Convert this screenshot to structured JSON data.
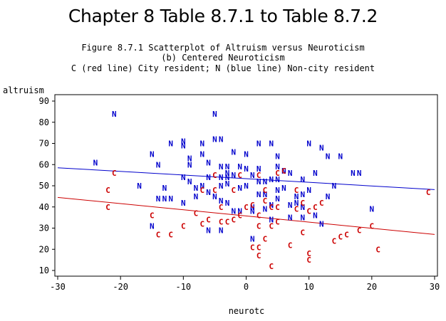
{
  "page": {
    "title": "Chapter 8 Table 8.7.1 to Table 8.7.2",
    "subtitle_lines": [
      "Figure 8.7.1 Scatterplot of Altruism versus Neuroticism",
      "(b) Centered Neuroticism",
      "C (red line) City resident; N (blue line) Non-city resident"
    ]
  },
  "chart_data": {
    "type": "scatter",
    "xlabel": "neurotc",
    "ylabel": "altruism",
    "xlim": [
      -30,
      30
    ],
    "ylim": [
      8,
      95
    ],
    "x_ticks": [
      -30,
      -20,
      -10,
      0,
      10,
      20,
      30
    ],
    "y_ticks": [
      10,
      20,
      30,
      40,
      50,
      60,
      70,
      80,
      90
    ],
    "grid": false,
    "legend": "none",
    "series": [
      {
        "name": "N",
        "marker": "N",
        "color": "#0000cc",
        "line": {
          "x": [
            -30,
            30
          ],
          "y": [
            58.5,
            48.2
          ]
        },
        "points": [
          [
            -24,
            61
          ],
          [
            -21,
            84
          ],
          [
            -17,
            50
          ],
          [
            -15,
            65
          ],
          [
            -14,
            44
          ],
          [
            -14,
            60
          ],
          [
            -13,
            49
          ],
          [
            -13,
            44
          ],
          [
            -12,
            70
          ],
          [
            -12,
            44
          ],
          [
            -15,
            31
          ],
          [
            -10,
            71
          ],
          [
            -10,
            69
          ],
          [
            -10,
            54
          ],
          [
            -10,
            42
          ],
          [
            -9,
            63
          ],
          [
            -9,
            60
          ],
          [
            -9,
            52
          ],
          [
            -8,
            45
          ],
          [
            -8,
            49
          ],
          [
            -7,
            70
          ],
          [
            -7,
            65
          ],
          [
            -7,
            50
          ],
          [
            -6,
            61
          ],
          [
            -6,
            54
          ],
          [
            -6,
            47
          ],
          [
            -6,
            29
          ],
          [
            -5,
            84
          ],
          [
            -5,
            72
          ],
          [
            -5,
            45
          ],
          [
            -4,
            72
          ],
          [
            -4,
            54
          ],
          [
            -4,
            59
          ],
          [
            -4,
            50
          ],
          [
            -4,
            43
          ],
          [
            -4,
            29
          ],
          [
            -3,
            59
          ],
          [
            -3,
            56
          ],
          [
            -3,
            54
          ],
          [
            -3,
            51
          ],
          [
            -3,
            42
          ],
          [
            -2,
            66
          ],
          [
            -2,
            55
          ],
          [
            -2,
            38
          ],
          [
            -1,
            59
          ],
          [
            -1,
            49
          ],
          [
            -1,
            38
          ],
          [
            0,
            65
          ],
          [
            0,
            58
          ],
          [
            0,
            50
          ],
          [
            1,
            55
          ],
          [
            1,
            40
          ],
          [
            1,
            38
          ],
          [
            1,
            25
          ],
          [
            2,
            70
          ],
          [
            2,
            58
          ],
          [
            2,
            52
          ],
          [
            2,
            46
          ],
          [
            3,
            52
          ],
          [
            3,
            46
          ],
          [
            3,
            39
          ],
          [
            4,
            70
          ],
          [
            4,
            53
          ],
          [
            4,
            41
          ],
          [
            4,
            34
          ],
          [
            5,
            64
          ],
          [
            5,
            59
          ],
          [
            5,
            53
          ],
          [
            5,
            48
          ],
          [
            5,
            44
          ],
          [
            6,
            57
          ],
          [
            6,
            49
          ],
          [
            7,
            56
          ],
          [
            7,
            41
          ],
          [
            7,
            35
          ],
          [
            8,
            45
          ],
          [
            8,
            42
          ],
          [
            9,
            53
          ],
          [
            9,
            46
          ],
          [
            9,
            40
          ],
          [
            9,
            35
          ],
          [
            10,
            70
          ],
          [
            10,
            48
          ],
          [
            11,
            56
          ],
          [
            11,
            36
          ],
          [
            12,
            68
          ],
          [
            12,
            32
          ],
          [
            13,
            64
          ],
          [
            13,
            45
          ],
          [
            14,
            50
          ],
          [
            15,
            64
          ],
          [
            17,
            56
          ],
          [
            18,
            56
          ],
          [
            20,
            39
          ]
        ]
      },
      {
        "name": "C",
        "marker": "C",
        "color": "#cc0000",
        "line": {
          "x": [
            -30,
            30
          ],
          "y": [
            44.5,
            27.0
          ]
        },
        "points": [
          [
            -21,
            56
          ],
          [
            -22,
            48
          ],
          [
            -22,
            40
          ],
          [
            -15,
            36
          ],
          [
            -14,
            27
          ],
          [
            -12,
            27
          ],
          [
            -10,
            31
          ],
          [
            -8,
            37
          ],
          [
            -7,
            32
          ],
          [
            -7,
            48
          ],
          [
            -6,
            34
          ],
          [
            -5,
            55
          ],
          [
            -5,
            48
          ],
          [
            -4,
            40
          ],
          [
            -4,
            33
          ],
          [
            -3,
            33
          ],
          [
            -2,
            34
          ],
          [
            -2,
            48
          ],
          [
            -1,
            55
          ],
          [
            -1,
            36
          ],
          [
            0,
            40
          ],
          [
            1,
            41
          ],
          [
            1,
            21
          ],
          [
            2,
            36
          ],
          [
            2,
            31
          ],
          [
            2,
            17
          ],
          [
            2,
            21
          ],
          [
            2,
            55
          ],
          [
            3,
            48
          ],
          [
            3,
            43
          ],
          [
            3,
            25
          ],
          [
            4,
            12
          ],
          [
            4,
            31
          ],
          [
            4,
            40
          ],
          [
            5,
            33
          ],
          [
            5,
            40
          ],
          [
            5,
            56
          ],
          [
            6,
            57
          ],
          [
            7,
            22
          ],
          [
            8,
            39
          ],
          [
            8,
            48
          ],
          [
            9,
            28
          ],
          [
            9,
            42
          ],
          [
            10,
            18
          ],
          [
            10,
            15
          ],
          [
            10,
            38
          ],
          [
            11,
            40
          ],
          [
            12,
            42
          ],
          [
            14,
            24
          ],
          [
            15,
            26
          ],
          [
            16,
            27
          ],
          [
            18,
            29
          ],
          [
            20,
            31
          ],
          [
            21,
            20
          ],
          [
            29,
            47
          ]
        ]
      }
    ]
  }
}
